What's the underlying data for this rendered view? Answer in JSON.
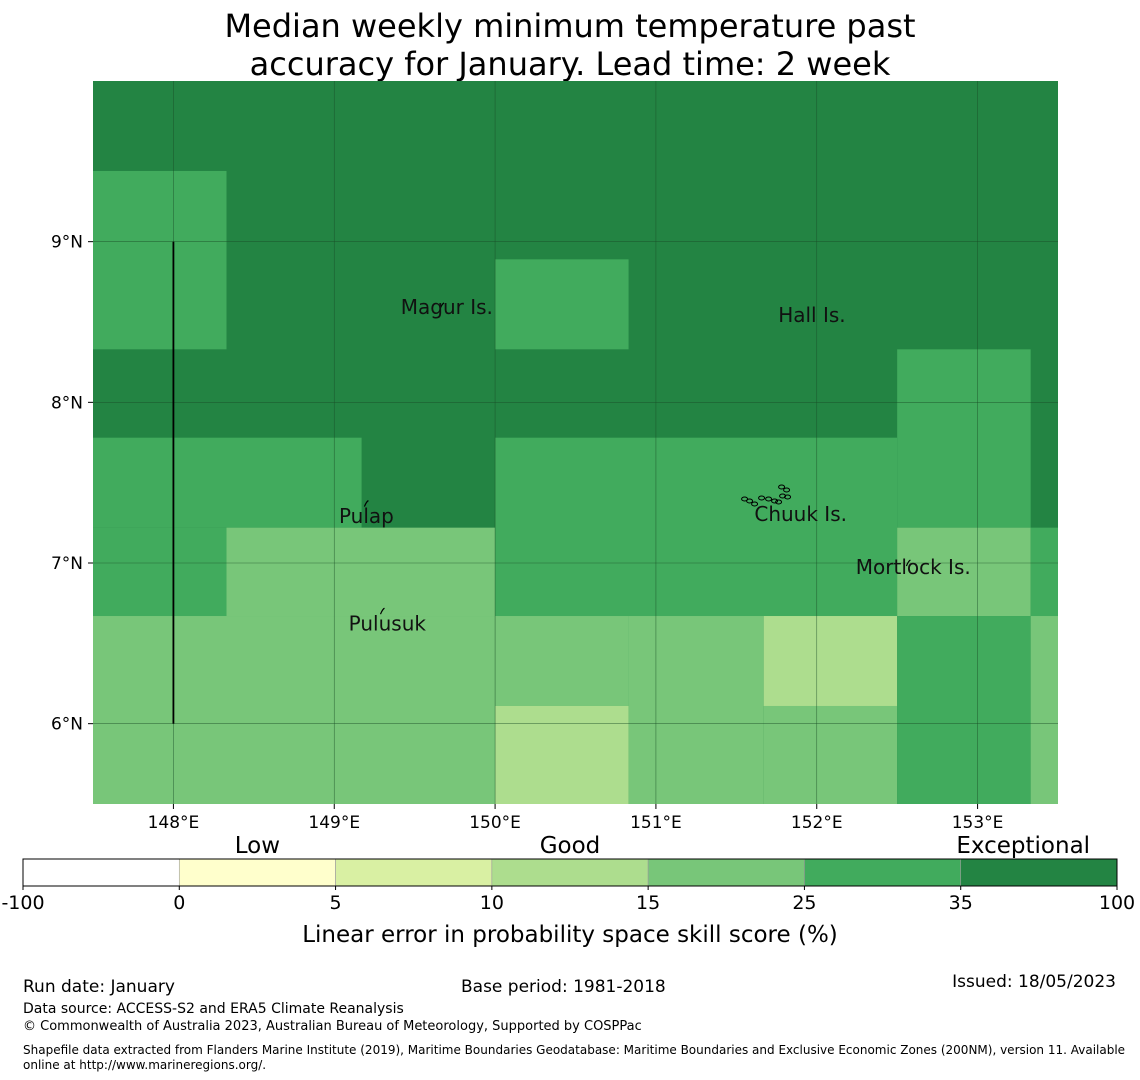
{
  "title_lines": [
    "Median weekly minimum temperature past",
    "accuracy for January. Lead time: 2 week"
  ],
  "map": {
    "lon_range": [
      147.5,
      153.5
    ],
    "lat_range": [
      5.5,
      10.0
    ],
    "x_ticks": [
      {
        "value": 148,
        "label": "148°E"
      },
      {
        "value": 149,
        "label": "149°E"
      },
      {
        "value": 150,
        "label": "150°E"
      },
      {
        "value": 151,
        "label": "151°E"
      },
      {
        "value": 152,
        "label": "152°E"
      },
      {
        "value": 153,
        "label": "153°E"
      }
    ],
    "y_ticks": [
      {
        "value": 9,
        "label": "9°N"
      },
      {
        "value": 8,
        "label": "8°N"
      },
      {
        "value": 7,
        "label": "7°N"
      },
      {
        "value": 6,
        "label": "6°N"
      }
    ],
    "grid": true,
    "background_class": 35,
    "cells": [
      {
        "lon": [
          147.5,
          148.33
        ],
        "lat": [
          8.33,
          9.44
        ],
        "class": 25
      },
      {
        "lon": [
          150.0,
          150.83
        ],
        "lat": [
          8.33,
          8.89
        ],
        "class": 25
      },
      {
        "lon": [
          152.5,
          153.33
        ],
        "lat": [
          7.22,
          8.33
        ],
        "class": 25
      },
      {
        "lon": [
          147.5,
          149.17
        ],
        "lat": [
          7.22,
          7.78
        ],
        "class": 25
      },
      {
        "lon": [
          150.0,
          152.5
        ],
        "lat": [
          6.67,
          7.78
        ],
        "class": 25
      },
      {
        "lon": [
          147.5,
          148.33
        ],
        "lat": [
          6.67,
          7.22
        ],
        "class": 25
      },
      {
        "lon": [
          148.33,
          150.0
        ],
        "lat": [
          6.67,
          7.22
        ],
        "class": 15
      },
      {
        "lon": [
          152.5,
          153.33
        ],
        "lat": [
          6.67,
          7.22
        ],
        "class": 15
      },
      {
        "lon": [
          153.33,
          153.5
        ],
        "lat": [
          6.67,
          7.22
        ],
        "class": 25
      },
      {
        "lon": [
          147.5,
          150.0
        ],
        "lat": [
          5.5,
          6.67
        ],
        "class": 15
      },
      {
        "lon": [
          150.0,
          150.83
        ],
        "lat": [
          6.11,
          6.67
        ],
        "class": 15
      },
      {
        "lon": [
          150.0,
          150.83
        ],
        "lat": [
          5.5,
          6.11
        ],
        "class": 10
      },
      {
        "lon": [
          150.83,
          151.67
        ],
        "lat": [
          5.5,
          6.67
        ],
        "class": 15
      },
      {
        "lon": [
          151.67,
          152.5
        ],
        "lat": [
          6.11,
          6.67
        ],
        "class": 10
      },
      {
        "lon": [
          151.67,
          152.5
        ],
        "lat": [
          5.5,
          6.11
        ],
        "class": 15
      },
      {
        "lon": [
          152.5,
          153.33
        ],
        "lat": [
          5.5,
          6.67
        ],
        "class": 25
      },
      {
        "lon": [
          153.33,
          153.5
        ],
        "lat": [
          5.5,
          6.67
        ],
        "class": 15
      }
    ],
    "boundary_line": {
      "lon": 148.0,
      "lat": [
        6.0,
        9.0
      ]
    },
    "places": [
      {
        "name": "Magur Is.",
        "lon": 149.7,
        "lat": 8.55
      },
      {
        "name": "Hall Is.",
        "lon": 151.97,
        "lat": 8.5
      },
      {
        "name": "Pulap",
        "lon": 149.2,
        "lat": 7.25
      },
      {
        "name": "Chuuk Is.",
        "lon": 151.9,
        "lat": 7.26
      },
      {
        "name": "Mortlock Is.",
        "lon": 152.6,
        "lat": 6.93
      },
      {
        "name": "Pulusuk",
        "lon": 149.33,
        "lat": 6.58
      }
    ],
    "islands": [
      {
        "lon": 149.67,
        "lat": 8.6
      },
      {
        "lon": 149.2,
        "lat": 7.37
      },
      {
        "lon": 149.3,
        "lat": 6.7
      },
      {
        "lon": 152.57,
        "lat": 7.0
      }
    ],
    "chuuk_lagoon": {
      "lon": 151.8,
      "lat": 7.38
    }
  },
  "legend": {
    "category_labels": [
      {
        "label": "Low",
        "at": 1.5
      },
      {
        "label": "Good",
        "at": 3.5
      },
      {
        "label": "Exceptional",
        "at": 6.4
      }
    ],
    "bins": [
      {
        "from": "-100",
        "to": "0",
        "color": "#ffffff"
      },
      {
        "from": "0",
        "to": "5",
        "color": "#ffffcc"
      },
      {
        "from": "5",
        "to": "10",
        "color": "#d9f0a3"
      },
      {
        "from": "10",
        "to": "15",
        "color": "#addd8e"
      },
      {
        "from": "15",
        "to": "25",
        "color": "#78c679"
      },
      {
        "from": "25",
        "to": "35",
        "color": "#41ab5d"
      },
      {
        "from": "35",
        "to": "100",
        "color": "#238443"
      }
    ],
    "tick_labels": [
      "-100",
      "0",
      "5",
      "10",
      "15",
      "25",
      "35",
      "100"
    ],
    "axis_label": "Linear error in probability space skill score (%)"
  },
  "class_colors": {
    "10": "#addd8e",
    "15": "#78c679",
    "25": "#41ab5d",
    "35": "#238443"
  },
  "footer": {
    "run_date": "Run date: January",
    "base_period": "Base period: 1981-2018",
    "issued": "Issued: 18/05/2023",
    "data_source": "Data source: ACCESS-S2 and ERA5 Climate Reanalysis",
    "copyright": "© Commonwealth of Australia 2023, Australian Bureau of Meteorology, Supported by COSPPac",
    "shapefile_line1": "Shapefile data extracted from Flanders Marine Institute (2019), Maritime Boundaries Geodatabase: Maritime Boundaries and Exclusive Economic Zones (200NM), version 11. Available",
    "shapefile_line2": "online at http://www.marineregions.org/."
  }
}
